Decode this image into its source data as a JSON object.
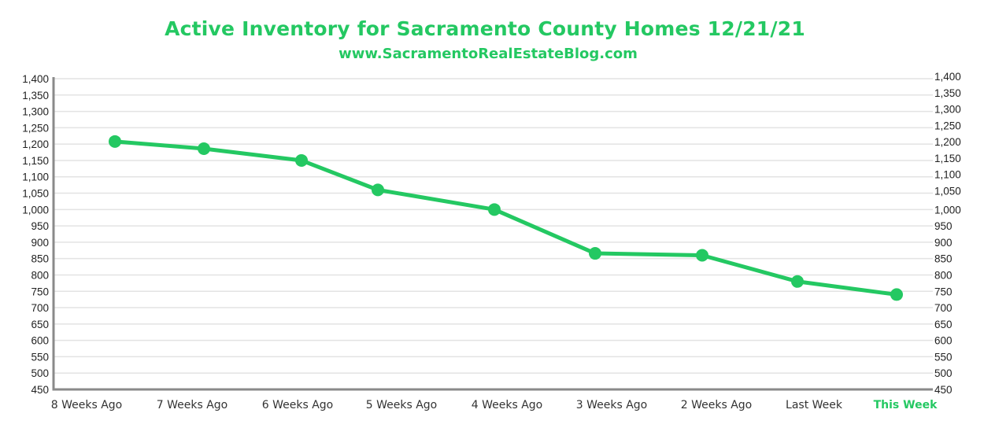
{
  "chart_data": {
    "type": "line",
    "title": "Active Inventory for Sacramento County Homes 12/21/21",
    "subtitle": "www.SacramentoRealEstateBlog.com",
    "xlabel": "",
    "ylabel": "",
    "categories": [
      "8 Weeks Ago",
      "7 Weeks Ago",
      "6 Weeks Ago",
      "5 Weeks Ago",
      "4 Weeks Ago",
      "3 Weeks Ago",
      "2 Weeks Ago",
      "Last Week",
      "This Week"
    ],
    "highlight_category": "This Week",
    "series": [
      {
        "name": "Active Inventory",
        "values": [
          1208,
          1186,
          1150,
          1060,
          1000,
          866,
          860,
          780,
          740
        ]
      }
    ],
    "ylim": [
      450,
      1400
    ],
    "yticks": [
      1400,
      1350,
      1300,
      1250,
      1200,
      1150,
      1100,
      1050,
      1000,
      950,
      900,
      850,
      800,
      750,
      700,
      650,
      600,
      550,
      500,
      450
    ],
    "ytick_labels": [
      "1,400",
      "1,350",
      "1,300",
      "1,250",
      "1,200",
      "1,150",
      "1,100",
      "1,050",
      "1,000",
      "950",
      "900",
      "850",
      "800",
      "750",
      "700",
      "650",
      "600",
      "550",
      "500",
      "450"
    ],
    "secondary_y_axis": true,
    "grid": true,
    "legend": "none",
    "colors": {
      "line": "#24c862",
      "grid": "#e3e3e3",
      "axis": "#8a8a8a",
      "highlight": "#24c862"
    }
  }
}
